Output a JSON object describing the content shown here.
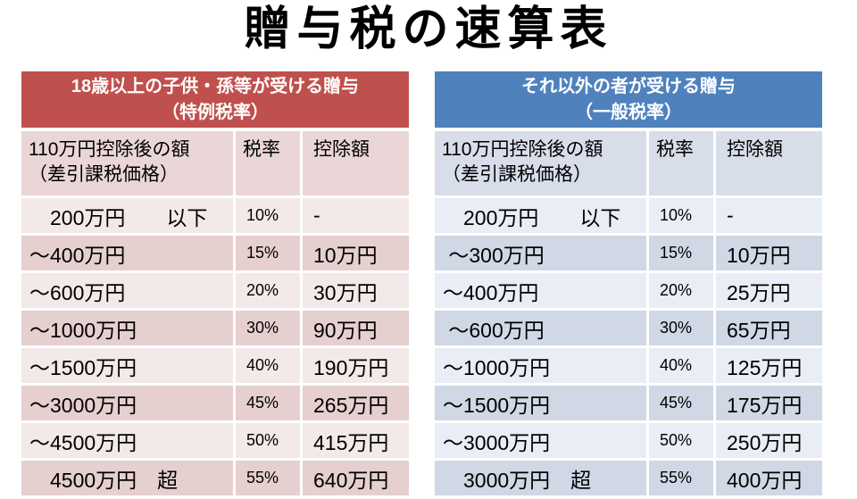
{
  "title": "贈与税の速算表",
  "tables": [
    {
      "name": "special-rate-table",
      "banner": {
        "line1": "18歳以上の子供・孫等が受ける贈与",
        "line2": "（特例税率）"
      },
      "colors": {
        "accent": "#C0504D",
        "header_row": "#EAD6D6",
        "row_light": "#F3E9E9",
        "row_dark": "#E6CFCF"
      },
      "columns": {
        "amount_line1": "110万円控除後の額",
        "amount_line2": "（差引課税価格）",
        "rate": "税率",
        "deduction": "控除額"
      },
      "rows": [
        {
          "range": "　200万円　　以下",
          "rate": "10%",
          "deduction": "-"
        },
        {
          "range": "～400万円",
          "rate": "15%",
          "deduction": "10万円"
        },
        {
          "range": "～600万円",
          "rate": "20%",
          "deduction": "30万円"
        },
        {
          "range": "～1000万円",
          "rate": "30%",
          "deduction": "90万円"
        },
        {
          "range": "～1500万円",
          "rate": "40%",
          "deduction": "190万円"
        },
        {
          "range": "～3000万円",
          "rate": "45%",
          "deduction": "265万円"
        },
        {
          "range": "～4500万円",
          "rate": "50%",
          "deduction": "415万円"
        },
        {
          "range": "　4500万円　超",
          "rate": "55%",
          "deduction": "640万円"
        }
      ]
    },
    {
      "name": "general-rate-table",
      "banner": {
        "line1": "それ以外の者が受ける贈与",
        "line2": "（一般税率）"
      },
      "colors": {
        "accent": "#4F81BD",
        "header_row": "#D8DDEA",
        "row_light": "#E9EDF5",
        "row_dark": "#D0D7E5"
      },
      "columns": {
        "amount_line1": "110万円控除後の額",
        "amount_line2": "（差引課税価格）",
        "rate": "税率",
        "deduction": "控除額"
      },
      "rows": [
        {
          "range": "　200万円　　以下",
          "rate": "10%",
          "deduction": "-"
        },
        {
          "range": " ～300万円",
          "rate": "15%",
          "deduction": "10万円"
        },
        {
          "range": "～400万円",
          "rate": "20%",
          "deduction": "25万円"
        },
        {
          "range": " ～600万円",
          "rate": "30%",
          "deduction": "65万円"
        },
        {
          "range": "～1000万円",
          "rate": "40%",
          "deduction": "125万円"
        },
        {
          "range": "～1500万円",
          "rate": "45%",
          "deduction": "175万円"
        },
        {
          "range": "～3000万円",
          "rate": "50%",
          "deduction": "250万円"
        },
        {
          "range": "　3000万円　超",
          "rate": "55%",
          "deduction": "400万円"
        }
      ]
    }
  ]
}
